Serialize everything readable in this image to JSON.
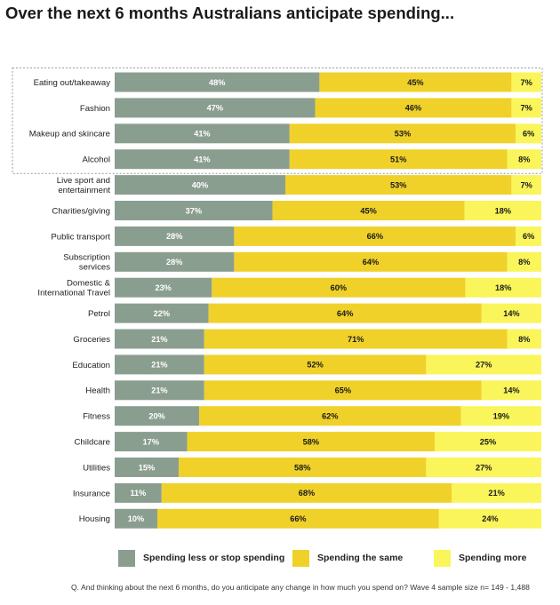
{
  "title": "Over the next 6 months Australians anticipate spending...",
  "footnote": "Q. And thinking about the next 6 months, do you anticipate any change in how much you spend on? Wave 4 sample size n= 149 - 1,488",
  "colors": {
    "less": "#8a9e90",
    "same": "#f0d12a",
    "more": "#f9f55a",
    "highlight_border": "#9a9a9a"
  },
  "chart_data": {
    "type": "bar",
    "orientation": "horizontal",
    "stacked": true,
    "categories": [
      [
        "Eating out/takeaway"
      ],
      [
        "Fashion"
      ],
      [
        "Makeup and skincare"
      ],
      [
        "Alcohol"
      ],
      [
        "Live sport and",
        "entertainment"
      ],
      [
        "Charities/giving"
      ],
      [
        "Public transport"
      ],
      [
        "Subscription",
        "services"
      ],
      [
        "Domestic &",
        "International Travel"
      ],
      [
        "Petrol"
      ],
      [
        "Groceries"
      ],
      [
        "Education"
      ],
      [
        "Health"
      ],
      [
        "Fitness"
      ],
      [
        "Childcare"
      ],
      [
        "Utilities"
      ],
      [
        "Insurance"
      ],
      [
        "Housing"
      ]
    ],
    "series": [
      {
        "name": "Spending less or stop spending",
        "values": [
          48,
          47,
          41,
          41,
          40,
          37,
          28,
          28,
          23,
          22,
          21,
          21,
          21,
          20,
          17,
          15,
          11,
          10
        ]
      },
      {
        "name": "Spending the same",
        "values": [
          45,
          46,
          53,
          51,
          53,
          45,
          66,
          64,
          60,
          64,
          71,
          52,
          65,
          62,
          58,
          58,
          68,
          66
        ]
      },
      {
        "name": "Spending more",
        "values": [
          7,
          7,
          6,
          8,
          7,
          18,
          6,
          8,
          18,
          14,
          8,
          27,
          14,
          19,
          25,
          27,
          21,
          24
        ]
      }
    ],
    "value_suffix": "%",
    "highlighted_rows": [
      0,
      1,
      2,
      3
    ],
    "legend_position": "bottom"
  }
}
